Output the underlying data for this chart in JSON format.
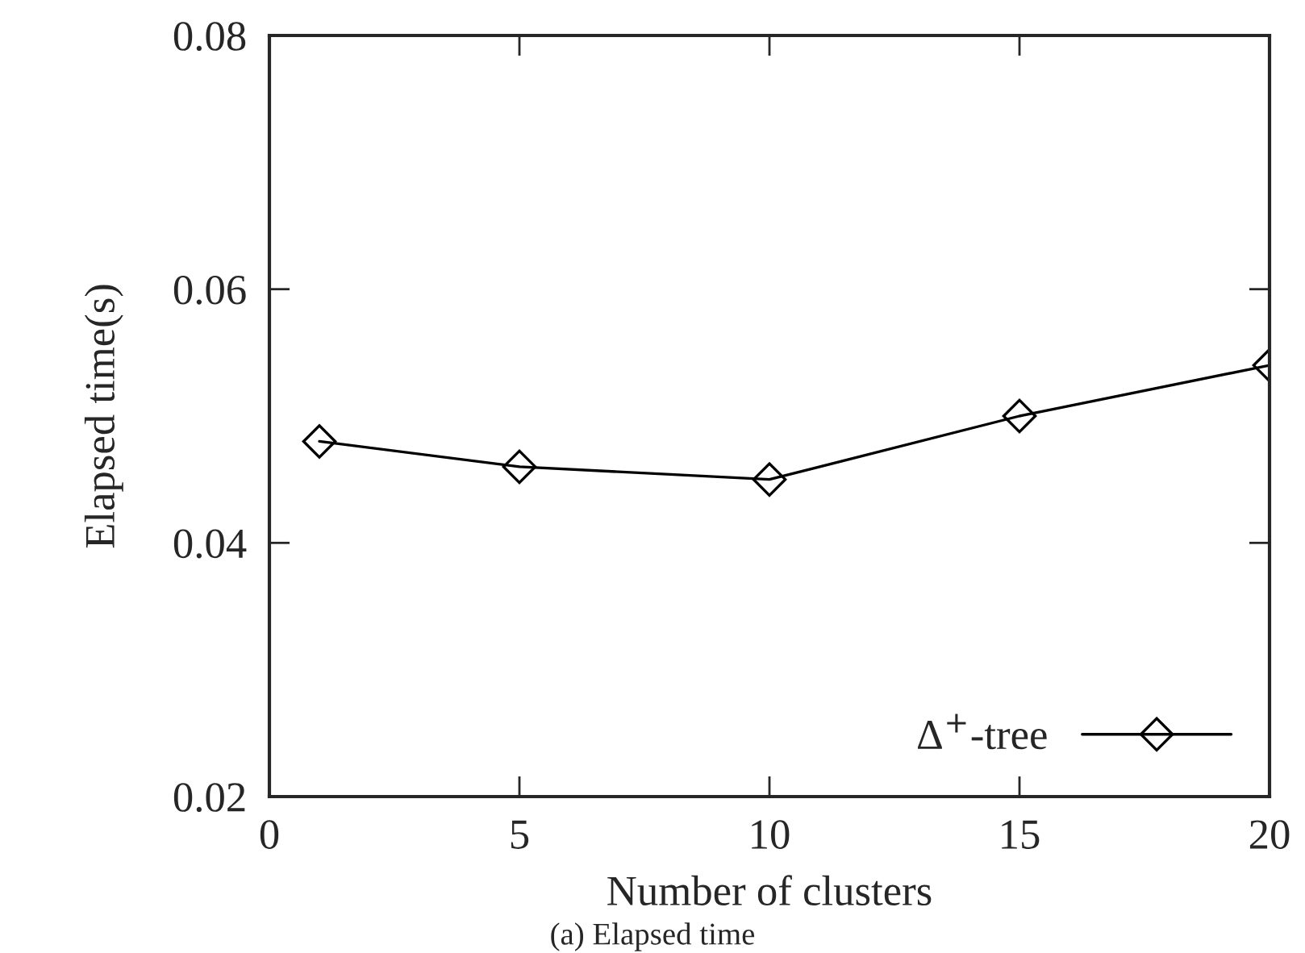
{
  "chart_data": {
    "type": "line",
    "xlabel": "Number of clusters",
    "ylabel": "Elapsed time(s)",
    "x": [
      1,
      5,
      10,
      15,
      20
    ],
    "series": [
      {
        "name": "Δ$^{+}$-tree",
        "color": "#000000",
        "values": [
          0.048,
          0.046,
          0.045,
          0.05,
          0.054
        ]
      }
    ],
    "xlim": [
      0,
      20
    ],
    "xticks": [
      0,
      5,
      10,
      15,
      20
    ],
    "ylim": [
      0.02,
      0.08
    ],
    "yticks": [
      {
        "value": 0.02,
        "label": "0.02"
      },
      {
        "value": 0.04,
        "label": "0.04"
      },
      {
        "value": 0.06,
        "label": "0.06"
      },
      {
        "value": 0.08,
        "label": "0.08"
      }
    ],
    "marker": "diamond",
    "line_style": "solid",
    "legend": "bottom right",
    "grid": false,
    "annotations": [
      "(a) Elapsed time"
    ]
  }
}
